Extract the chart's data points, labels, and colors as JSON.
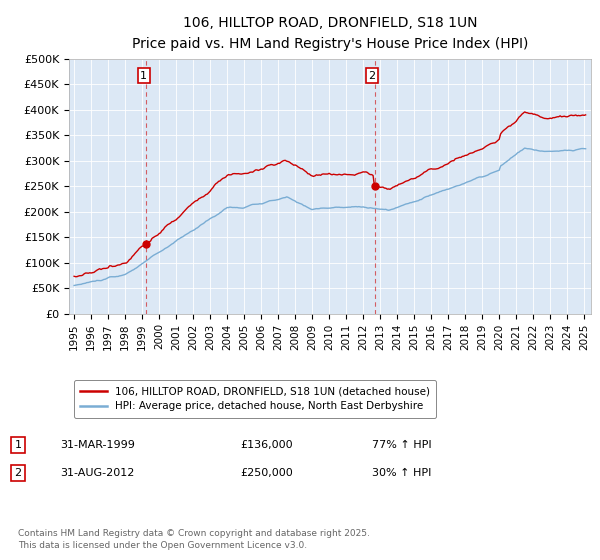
{
  "title": "106, HILLTOP ROAD, DRONFIELD, S18 1UN",
  "subtitle": "Price paid vs. HM Land Registry's House Price Index (HPI)",
  "ylabel_ticks": [
    "£0",
    "£50K",
    "£100K",
    "£150K",
    "£200K",
    "£250K",
    "£300K",
    "£350K",
    "£400K",
    "£450K",
    "£500K"
  ],
  "ylim": [
    0,
    500000
  ],
  "ytick_values": [
    0,
    50000,
    100000,
    150000,
    200000,
    250000,
    300000,
    350000,
    400000,
    450000,
    500000
  ],
  "sale1_date_str": "31-MAR-1999",
  "sale1_price": 136000,
  "sale1_pct": "77% ↑ HPI",
  "sale2_date_str": "31-AUG-2012",
  "sale2_price": 250000,
  "sale2_pct": "30% ↑ HPI",
  "legend_label_red": "106, HILLTOP ROAD, DRONFIELD, S18 1UN (detached house)",
  "legend_label_blue": "HPI: Average price, detached house, North East Derbyshire",
  "red_color": "#cc0000",
  "blue_color": "#7aadd4",
  "bg_color": "#dce8f5",
  "grid_color": "#ffffff",
  "copyright_text": "Contains HM Land Registry data © Crown copyright and database right 2025.\nThis data is licensed under the Open Government Licence v3.0.",
  "sale1_year": 1999.25,
  "sale2_year": 2012.67
}
